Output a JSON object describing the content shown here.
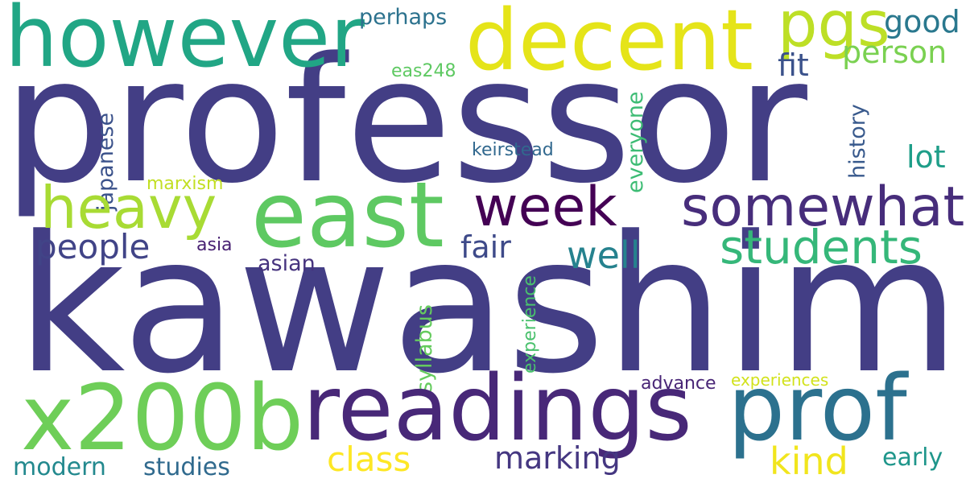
{
  "words": {
    "professor": {
      "text": "professor",
      "color": "#433e85"
    },
    "kawashima": {
      "text": "kawashima",
      "color": "#433e85"
    },
    "however": {
      "text": "however",
      "color": "#21a685"
    },
    "decent": {
      "text": "decent",
      "color": "#e5e419"
    },
    "pgs": {
      "text": "pgs",
      "color": "#bddf26"
    },
    "good": {
      "text": "good",
      "color": "#2a788e"
    },
    "person": {
      "text": "person",
      "color": "#7ad151"
    },
    "perhaps": {
      "text": "perhaps",
      "color": "#2c728e"
    },
    "fit": {
      "text": "fit",
      "color": "#3b528b"
    },
    "eas248": {
      "text": "eas248",
      "color": "#5ec962"
    },
    "japanese": {
      "text": "japanese",
      "color": "#3b528b"
    },
    "everyone": {
      "text": "everyone",
      "color": "#3dbc74"
    },
    "history": {
      "text": "history",
      "color": "#38598c"
    },
    "keirstead": {
      "text": "keirstead",
      "color": "#31688e"
    },
    "lot": {
      "text": "lot",
      "color": "#1f9e89"
    },
    "marxism": {
      "text": "marxism",
      "color": "#c2df23"
    },
    "heavy": {
      "text": "heavy",
      "color": "#a8db34"
    },
    "east": {
      "text": "east",
      "color": "#5ec962"
    },
    "week": {
      "text": "week",
      "color": "#440154"
    },
    "somewhat": {
      "text": "somewhat",
      "color": "#472d7b"
    },
    "people": {
      "text": "people",
      "color": "#414487"
    },
    "asia": {
      "text": "asia",
      "color": "#482173"
    },
    "fair": {
      "text": "fair",
      "color": "#3e4a89"
    },
    "well": {
      "text": "well",
      "color": "#26828e"
    },
    "students": {
      "text": "students",
      "color": "#35b779"
    },
    "asian": {
      "text": "asian",
      "color": "#46337e"
    },
    "experience": {
      "text": "experience",
      "color": "#4ac16d"
    },
    "syllabus": {
      "text": "syllabus",
      "color": "#65cb5e"
    },
    "advance": {
      "text": "advance",
      "color": "#482576"
    },
    "experiences": {
      "text": "experiences",
      "color": "#d2e21b"
    },
    "x200b": {
      "text": "x200b",
      "color": "#6ece58"
    },
    "readings": {
      "text": "readings",
      "color": "#482878"
    },
    "prof": {
      "text": "prof",
      "color": "#2c718e"
    },
    "class": {
      "text": "class",
      "color": "#fde725"
    },
    "marking": {
      "text": "marking",
      "color": "#453781"
    },
    "kind": {
      "text": "kind",
      "color": "#f1e51d"
    },
    "early": {
      "text": "early",
      "color": "#1f968b"
    },
    "modern": {
      "text": "modern",
      "color": "#23898e"
    },
    "studies": {
      "text": "studies",
      "color": "#306a8e"
    }
  }
}
